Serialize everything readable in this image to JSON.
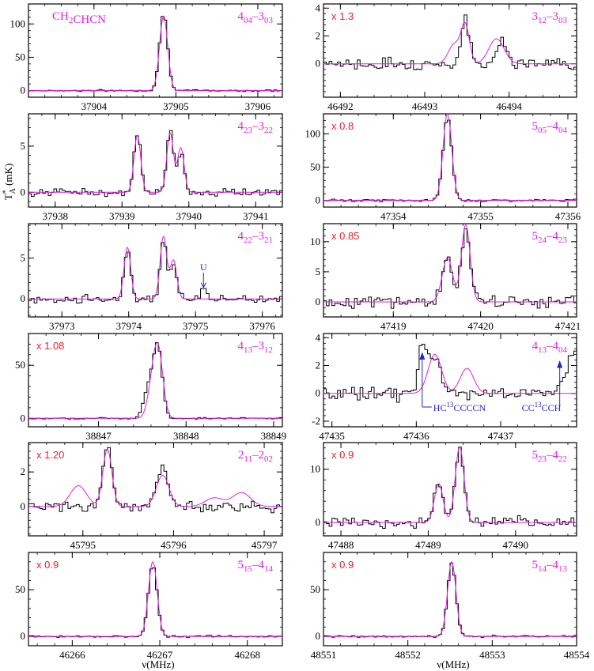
{
  "figure": {
    "molecule_label": "CH2CHCN",
    "y_axis_label": "T*A (mK)",
    "x_axis_label": "ν(MHz)"
  },
  "colors": {
    "observed": "#000000",
    "model": "#e020e0",
    "scale": "#e8212b",
    "annotation": "#2222cc"
  },
  "chart_data": [
    {
      "type": "line",
      "transition": "4_04-3_03",
      "scale": "",
      "xlim": [
        37903.2,
        37906.3
      ],
      "ylim": [
        -10,
        130
      ],
      "xticks": [
        37904,
        37905,
        37906
      ],
      "yticks": [
        0,
        50,
        100
      ],
      "line": {
        "center": 37904.85,
        "peak": 115,
        "width": 0.05,
        "model_offset": 0
      },
      "noise": 0.8,
      "model_lines": [
        {
          "center": 37904.85,
          "peak": 112,
          "width": 0.05
        }
      ]
    },
    {
      "type": "line",
      "transition": "3_12-3_03",
      "scale": "x 1.3",
      "xlim": [
        46491.8,
        46494.8
      ],
      "ylim": [
        -2.4,
        4.3
      ],
      "xticks": [
        46492,
        46493,
        46494
      ],
      "yticks": [
        0,
        2,
        4
      ],
      "noise": 0.7,
      "model_lines": [
        {
          "center": 46493.35,
          "peak": 1.4,
          "width": 0.07
        },
        {
          "center": 46493.48,
          "peak": 2.7,
          "width": 0.05
        },
        {
          "center": 46493.85,
          "peak": 1.8,
          "width": 0.09
        }
      ],
      "obs_lines": [
        {
          "center": 46493.48,
          "peak": 3.0,
          "width": 0.05
        },
        {
          "center": 46493.92,
          "peak": 1.9,
          "width": 0.06
        }
      ]
    },
    {
      "type": "line",
      "transition": "4_23-3_22",
      "scale": "",
      "xlim": [
        37937.6,
        37941.4
      ],
      "ylim": [
        -1.6,
        8.5
      ],
      "xticks": [
        37938,
        37939,
        37940,
        37941
      ],
      "yticks": [
        0,
        5
      ],
      "noise": 0.45,
      "model_lines": [
        {
          "center": 37939.23,
          "peak": 6.2,
          "width": 0.05
        },
        {
          "center": 37939.72,
          "peak": 6.4,
          "width": 0.05
        },
        {
          "center": 37939.88,
          "peak": 4.8,
          "width": 0.05
        }
      ],
      "obs_lines": [
        {
          "center": 37939.23,
          "peak": 6.3,
          "width": 0.05
        },
        {
          "center": 37939.72,
          "peak": 6.7,
          "width": 0.05
        },
        {
          "center": 37939.88,
          "peak": 4.2,
          "width": 0.05
        }
      ]
    },
    {
      "type": "line",
      "transition": "5_05-4_04",
      "scale": "x 0.8",
      "xlim": [
        47353.2,
        47356.1
      ],
      "ylim": [
        -10,
        130
      ],
      "xticks": [
        47354,
        47355,
        47356
      ],
      "yticks": [
        0,
        50,
        100
      ],
      "noise": 1.0,
      "model_lines": [
        {
          "center": 47354.62,
          "peak": 130,
          "width": 0.05
        }
      ],
      "obs_lines": [
        {
          "center": 47354.62,
          "peak": 125,
          "width": 0.05
        }
      ]
    },
    {
      "type": "line",
      "transition": "4_22-3_21",
      "scale": "",
      "xlim": [
        37972.5,
        37976.3
      ],
      "ylim": [
        -2.2,
        9.2
      ],
      "xticks": [
        37973,
        37974,
        37975,
        37976
      ],
      "yticks": [
        0,
        5
      ],
      "noise": 0.45,
      "model_lines": [
        {
          "center": 37973.98,
          "peak": 6.3,
          "width": 0.05
        },
        {
          "center": 37974.52,
          "peak": 7.6,
          "width": 0.05
        },
        {
          "center": 37974.67,
          "peak": 4.7,
          "width": 0.05
        }
      ],
      "obs_lines": [
        {
          "center": 37973.98,
          "peak": 5.9,
          "width": 0.05
        },
        {
          "center": 37974.52,
          "peak": 7.2,
          "width": 0.05
        },
        {
          "center": 37974.67,
          "peak": 4.2,
          "width": 0.05
        },
        {
          "center": 37975.12,
          "peak": 1.1,
          "width": 0.06
        }
      ],
      "annotations": [
        {
          "text": "U",
          "x": 37975.12,
          "tip": 1.3
        }
      ]
    },
    {
      "type": "line",
      "transition": "5_24-4_23",
      "scale": "x 0.85",
      "xlim": [
        47418.2,
        47421.1
      ],
      "ylim": [
        -2.5,
        13
      ],
      "xticks": [
        47419,
        47420,
        47421
      ],
      "yticks": [
        0,
        5,
        10
      ],
      "noise": 0.7,
      "model_lines": [
        {
          "center": 47419.62,
          "peak": 7.3,
          "width": 0.06
        },
        {
          "center": 47419.83,
          "peak": 12.8,
          "width": 0.05
        }
      ],
      "obs_lines": [
        {
          "center": 47419.62,
          "peak": 7.0,
          "width": 0.06
        },
        {
          "center": 47419.83,
          "peak": 12.0,
          "width": 0.05
        }
      ]
    },
    {
      "type": "line",
      "transition": "4_13-3_12",
      "scale": "x 1.08",
      "xlim": [
        38846.2,
        38849.1
      ],
      "ylim": [
        -8,
        80
      ],
      "xticks": [
        38847,
        38848,
        38849
      ],
      "yticks": [
        0,
        50
      ],
      "noise": 0.8,
      "model_lines": [
        {
          "center": 38847.68,
          "peak": 65,
          "width": 0.055
        },
        {
          "center": 38847.6,
          "peak": 20,
          "width": 0.05
        }
      ],
      "obs_lines": [
        {
          "center": 38847.68,
          "peak": 63,
          "width": 0.05
        },
        {
          "center": 38847.58,
          "peak": 30,
          "width": 0.06
        }
      ]
    },
    {
      "type": "line",
      "transition": "4_13-4_04",
      "scale": "",
      "xlim": [
        47434.9,
        47437.9
      ],
      "ylim": [
        -2.4,
        4.3
      ],
      "xticks": [
        47435,
        47436,
        47437
      ],
      "yticks": [
        -2,
        0,
        2,
        4
      ],
      "noise": 0.8,
      "model_lines": [
        {
          "center": 47436.22,
          "peak": 2.8,
          "width": 0.08
        },
        {
          "center": 47436.6,
          "peak": 1.8,
          "width": 0.08
        }
      ],
      "obs_lines": [
        {
          "center": 47436.08,
          "peak": 3.5,
          "width": 0.05
        },
        {
          "center": 47436.22,
          "peak": 2.6,
          "width": 0.06
        },
        {
          "center": 47437.85,
          "peak": 3.0,
          "width": 0.08
        }
      ],
      "annotations": [
        {
          "text": "HC13CCCCN",
          "x": 47436.07,
          "tip": 3.0
        },
        {
          "text": "CC13CCH",
          "x": 47437.7,
          "tip": 2.4
        }
      ]
    },
    {
      "type": "line",
      "transition": "2_11-2_02",
      "scale": "x 1.20",
      "xlim": [
        45794.4,
        45797.2
      ],
      "ylim": [
        -1.7,
        3.7
      ],
      "xticks": [
        45795,
        45796,
        45797
      ],
      "yticks": [
        0,
        2
      ],
      "noise": 0.6,
      "model_lines": [
        {
          "center": 45794.95,
          "peak": 1.2,
          "width": 0.09
        },
        {
          "center": 45795.27,
          "peak": 3.3,
          "width": 0.05
        },
        {
          "center": 45795.88,
          "peak": 1.8,
          "width": 0.07
        },
        {
          "center": 45796.45,
          "peak": 0.5,
          "width": 0.1
        },
        {
          "center": 45796.75,
          "peak": 0.8,
          "width": 0.1
        }
      ],
      "obs_lines": [
        {
          "center": 45795.27,
          "peak": 3.4,
          "width": 0.05
        },
        {
          "center": 45795.88,
          "peak": 2.3,
          "width": 0.06
        }
      ]
    },
    {
      "type": "line",
      "transition": "5_23-4_22",
      "scale": "x 0.9",
      "xlim": [
        47487.8,
        47490.7
      ],
      "ylim": [
        -2.5,
        15
      ],
      "xticks": [
        47488,
        47489,
        47490
      ],
      "yticks": [
        0,
        10
      ],
      "noise": 0.6,
      "model_lines": [
        {
          "center": 47489.12,
          "peak": 7.3,
          "width": 0.05
        },
        {
          "center": 47489.36,
          "peak": 14.2,
          "width": 0.05
        }
      ],
      "obs_lines": [
        {
          "center": 47489.12,
          "peak": 7.6,
          "width": 0.05
        },
        {
          "center": 47489.36,
          "peak": 13.6,
          "width": 0.05
        }
      ]
    },
    {
      "type": "line",
      "transition": "5_15-4_14",
      "scale": "x 0.9",
      "xlim": [
        46265.5,
        46268.4
      ],
      "ylim": [
        -10,
        90
      ],
      "xticks": [
        46266,
        46267,
        46268
      ],
      "yticks": [
        0,
        50
      ],
      "noise": 0.8,
      "model_lines": [
        {
          "center": 46266.92,
          "peak": 80,
          "width": 0.05
        }
      ],
      "obs_lines": [
        {
          "center": 46266.92,
          "peak": 77,
          "width": 0.05
        }
      ]
    },
    {
      "type": "line",
      "transition": "5_14-4_13",
      "scale": "x 0.9",
      "xlim": [
        48551,
        48554
      ],
      "ylim": [
        -10,
        90
      ],
      "xticks": [
        48551,
        48552,
        48553,
        48554
      ],
      "yticks": [
        0,
        50
      ],
      "noise": 0.8,
      "model_lines": [
        {
          "center": 48552.52,
          "peak": 80,
          "width": 0.05
        }
      ],
      "obs_lines": [
        {
          "center": 48552.52,
          "peak": 78,
          "width": 0.05
        }
      ]
    }
  ]
}
